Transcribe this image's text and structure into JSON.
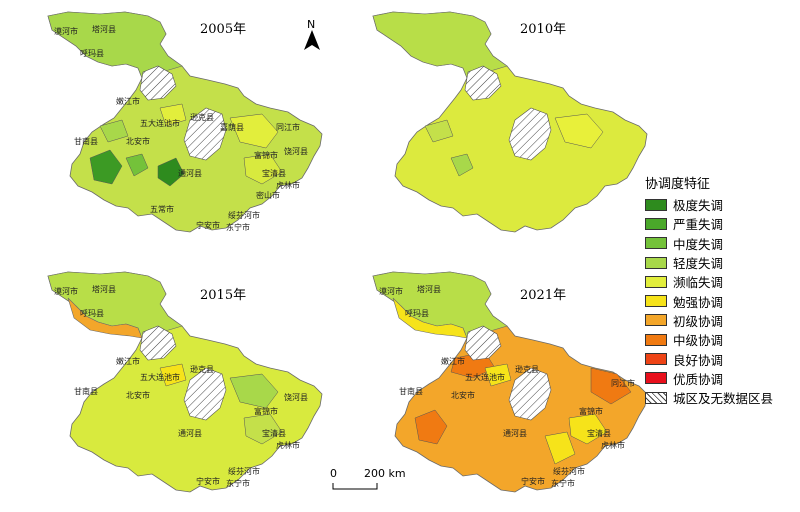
{
  "panels": [
    {
      "year": "2005年",
      "labels": {
        "mohe": "漠河市",
        "tahe": "塔河县",
        "huma": "呼玛县",
        "nenjiang": "嫩江市",
        "wudalianchi": "五大连池市",
        "xunke": "逊克县",
        "jiayin": "嘉荫县",
        "gannan": "甘南县",
        "beian": "北安市",
        "tongjiang": "同江市",
        "fujin": "富锦市",
        "raohe": "饶河县",
        "baoqing": "宝清县",
        "hulin": "虎林市",
        "mishan": "密山市",
        "tonghe": "通河县",
        "wuchang": "五常市",
        "suifenhe": "绥芬河市",
        "ningan": "宁安市",
        "dongning": "东宁市"
      }
    },
    {
      "year": "2010年"
    },
    {
      "year": "2015年",
      "labels": {
        "mohe": "漠河市",
        "tahe": "塔河县",
        "huma": "呼玛县",
        "nenjiang": "嫩江市",
        "wudalianchi": "五大连池市",
        "xunke": "逊克县",
        "gannan": "甘南县",
        "beian": "北安市",
        "fujin": "富锦市",
        "raohe": "饶河县",
        "baoqing": "宝清县",
        "hulin": "虎林市",
        "tonghe": "通河县",
        "suifenhe": "绥芬河市",
        "ningan": "宁安市",
        "dongning": "东宁市"
      }
    },
    {
      "year": "2021年",
      "labels": {
        "mohe": "漠河市",
        "tahe": "塔河县",
        "huma": "呼玛县",
        "nenjiang": "嫩江市",
        "wudalianchi": "五大连池市",
        "xunke": "逊克县",
        "gannan": "甘南县",
        "beian": "北安市",
        "fujin": "富锦市",
        "tongjiang": "同江市",
        "baoqing": "宝清县",
        "hulin": "虎林市",
        "tonghe": "通河县",
        "suifenhe": "绥芬河市",
        "ningan": "宁安市",
        "dongning": "东宁市"
      }
    }
  ],
  "north_arrow": "N",
  "scale": {
    "start": "0",
    "end": "200 km"
  },
  "legend": {
    "title": "协调度特征",
    "items": [
      {
        "label": "极度失调",
        "color": "#2e8b1e"
      },
      {
        "label": "严重失调",
        "color": "#4aa82a"
      },
      {
        "label": "中度失调",
        "color": "#74c23a"
      },
      {
        "label": "轻度失调",
        "color": "#a8d84a"
      },
      {
        "label": "濒临失调",
        "color": "#e2ee3c"
      },
      {
        "label": "勉强协调",
        "color": "#f6e31a"
      },
      {
        "label": "初级协调",
        "color": "#f3a62a"
      },
      {
        "label": "中级协调",
        "color": "#f07a12"
      },
      {
        "label": "良好协调",
        "color": "#ee4416"
      },
      {
        "label": "优质协调",
        "color": "#e8101c"
      },
      {
        "label": "城区及无数据区县",
        "color": "hatch"
      }
    ]
  }
}
